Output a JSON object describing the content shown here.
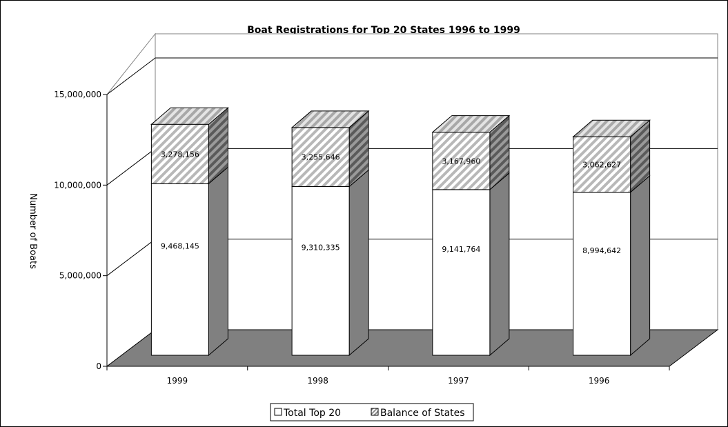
{
  "chart_data": {
    "type": "bar",
    "stacked": true,
    "three_d": true,
    "title": "Boat Registrations for Top 20 States 1996 to 1999",
    "ylabel": "Number of Boats",
    "xlabel": "",
    "categories": [
      "1999",
      "1998",
      "1997",
      "1996"
    ],
    "series": [
      {
        "name": "Total Top 20",
        "values": [
          9468145,
          9310335,
          9141764,
          8994642
        ],
        "labels": [
          "9,468,145",
          "9,310,335",
          "9,141,764",
          "8,994,642"
        ],
        "color": "#ffffff"
      },
      {
        "name": "Balance of States",
        "values": [
          3278156,
          3255646,
          3167960,
          3062627
        ],
        "labels": [
          "3,278,156",
          "3,255,646",
          "3,167,960",
          "3,062,627"
        ],
        "color": "#c0c0c0"
      }
    ],
    "ylim": [
      0,
      15000000
    ],
    "yticks": [
      0,
      5000000,
      10000000,
      15000000
    ],
    "ytick_labels": [
      "0",
      "5,000,000",
      "10,000,000",
      "15,000,000"
    ],
    "grid": true,
    "legend_position": "bottom"
  },
  "colors": {
    "floor": "#808080",
    "side": "#808080",
    "gridline": "#000000"
  }
}
